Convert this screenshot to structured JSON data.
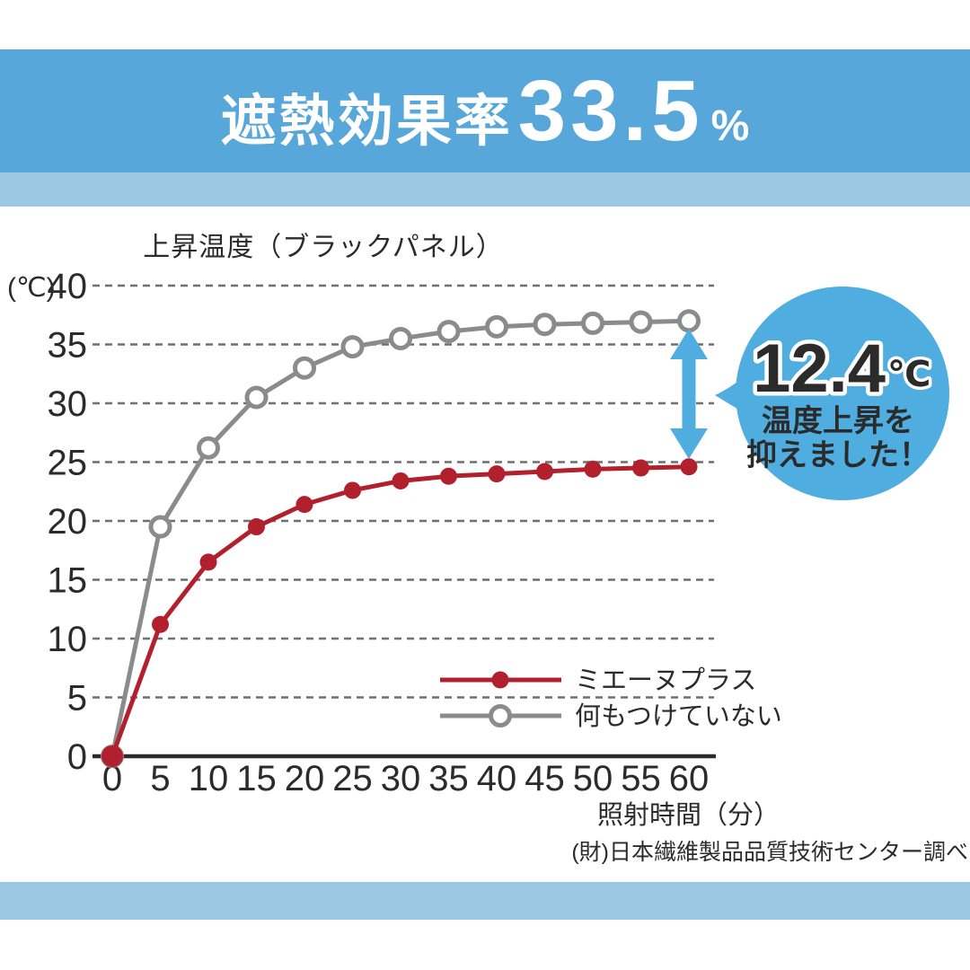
{
  "colors": {
    "band_primary": "#57a7da",
    "band_light": "#9dc8e3",
    "accent_blue": "#4fade0",
    "series_red": "#b2202d",
    "series_gray": "#8b8b8b",
    "grid": "#6f6f6f",
    "axis": "#2b2b2b"
  },
  "header": {
    "title_prefix": "遮熱効果率",
    "title_value": "33.5",
    "title_unit": "%"
  },
  "chart_data": {
    "type": "line",
    "title": "上昇温度（ブラックパネル）",
    "y_unit": "(℃)",
    "xlabel": "照射時間（分）",
    "xlim": [
      0,
      60
    ],
    "ylim": [
      0,
      40
    ],
    "x": [
      0,
      5,
      10,
      15,
      20,
      25,
      30,
      35,
      40,
      45,
      50,
      55,
      60
    ],
    "y_ticks": [
      0,
      5,
      10,
      15,
      20,
      25,
      30,
      35,
      40
    ],
    "grid": "horizontal-dashed",
    "legend_position": "inside-bottom-right",
    "series": [
      {
        "name": "ミエーヌプラス",
        "color": "#b2202d",
        "marker": "filled-circle",
        "values": [
          0,
          11.2,
          16.5,
          19.5,
          21.4,
          22.6,
          23.4,
          23.8,
          24.0,
          24.2,
          24.4,
          24.5,
          24.6
        ]
      },
      {
        "name": "何もつけていない",
        "color": "#8b8b8b",
        "marker": "open-circle",
        "values": [
          0,
          19.5,
          26.2,
          30.5,
          33.0,
          34.8,
          35.5,
          36.1,
          36.5,
          36.7,
          36.8,
          36.9,
          37.0
        ]
      }
    ]
  },
  "annotation": {
    "value": "12.4",
    "unit": "℃",
    "line1": "温度上昇を",
    "line2": "抑えました！",
    "arrow_color": "#4fade0",
    "bubble_color": "#4fade0"
  },
  "source": "(財)日本繊維製品品質技術センター調べ"
}
